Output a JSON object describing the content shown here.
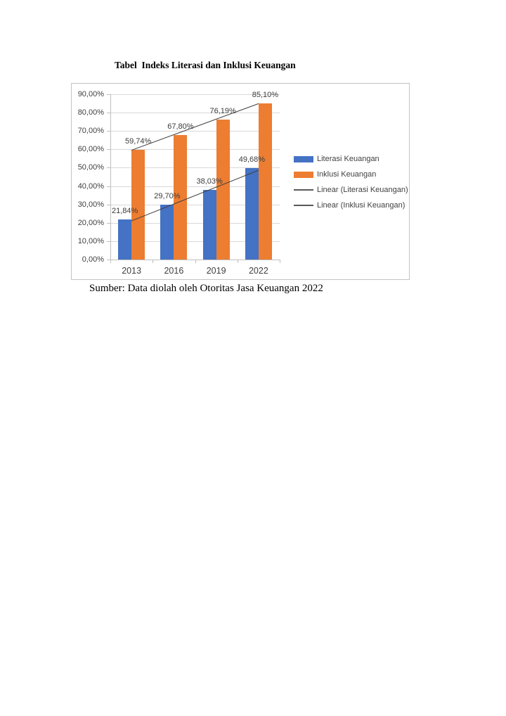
{
  "page": {
    "title": "Tabel  Indeks Literasi dan Inklusi Keuangan",
    "source_caption": "Sumber: Data diolah oleh Otoritas Jasa Keuangan 2022"
  },
  "chart_data": {
    "type": "bar",
    "title": "Tabel  Indeks Literasi dan Inklusi Keuangan",
    "categories": [
      "2013",
      "2016",
      "2019",
      "2022"
    ],
    "series": [
      {
        "name": "Literasi Keuangan",
        "color": "#4472C4",
        "values": [
          21.84,
          29.7,
          38.03,
          49.68
        ],
        "data_labels": [
          "21,84%",
          "29,70%",
          "38,03%",
          "49,68%"
        ]
      },
      {
        "name": "Inklusi Keuangan",
        "color": "#ED7D31",
        "values": [
          59.74,
          67.8,
          76.19,
          85.1
        ],
        "data_labels": [
          "59,74%",
          "67,80%",
          "76,19%",
          "85,10%"
        ]
      }
    ],
    "trendlines": [
      {
        "name": "Linear (Literasi Keuangan)",
        "series_index": 0,
        "color": "#404040"
      },
      {
        "name": "Linear (Inklusi Keuangan)",
        "series_index": 1,
        "color": "#404040"
      }
    ],
    "y_axis": {
      "min": 0,
      "max": 90,
      "step": 10,
      "tick_labels": [
        "0,00%",
        "10,00%",
        "20,00%",
        "30,00%",
        "40,00%",
        "50,00%",
        "60,00%",
        "70,00%",
        "80,00%",
        "90,00%"
      ]
    },
    "xlabel": "",
    "ylabel": "",
    "ylim": [
      0,
      90
    ],
    "grid": true,
    "legend": {
      "position": "right",
      "entries": [
        {
          "label": "Literasi Keuangan",
          "swatch": "bar",
          "color": "#4472C4"
        },
        {
          "label": "Inklusi Keuangan",
          "swatch": "bar",
          "color": "#ED7D31"
        },
        {
          "label": "Linear (Literasi Keuangan)",
          "swatch": "line",
          "color": "#595959"
        },
        {
          "label": "Linear (Inklusi Keuangan)",
          "swatch": "line",
          "color": "#595959"
        }
      ]
    },
    "colors": {
      "gridline": "#d9d9d9",
      "axis": "#bfbfbf",
      "axis_text": "#404040",
      "data_label_text": "#3b3b3b"
    }
  }
}
